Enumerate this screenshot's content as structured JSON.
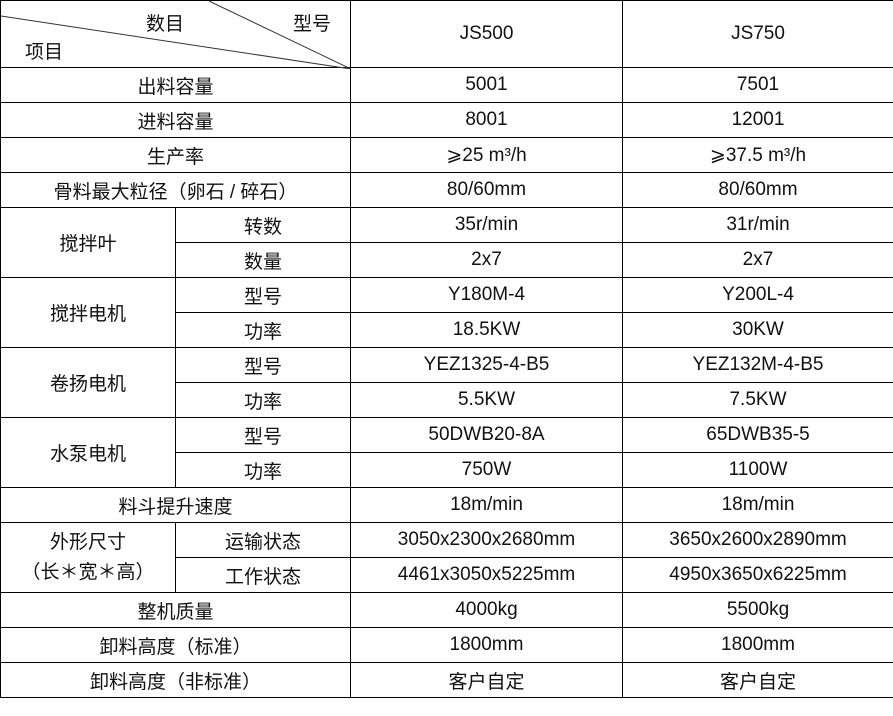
{
  "header": {
    "item": "项目",
    "count": "数目",
    "model": "型号",
    "models": [
      "JS500",
      "JS750"
    ]
  },
  "rows": [
    {
      "label": "出料容量",
      "values": [
        "5001",
        "7501"
      ]
    },
    {
      "label": "进料容量",
      "values": [
        "8001",
        "12001"
      ]
    },
    {
      "label": "生产率",
      "values": [
        "⩾25 m³/h",
        "⩾37.5 m³/h"
      ]
    },
    {
      "label": "骨料最大粒径（卵石 / 碎石）",
      "values": [
        "80/60mm",
        "80/60mm"
      ]
    },
    {
      "label": "搅拌叶",
      "sub": [
        {
          "label": "转数",
          "values": [
            "35r/min",
            "31r/min"
          ]
        },
        {
          "label": "数量",
          "values": [
            "2x7",
            "2x7"
          ]
        }
      ]
    },
    {
      "label": "搅拌电机",
      "sub": [
        {
          "label": "型号",
          "values": [
            "Y180M-4",
            "Y200L-4"
          ]
        },
        {
          "label": "功率",
          "values": [
            "18.5KW",
            "30KW"
          ]
        }
      ]
    },
    {
      "label": "卷扬电机",
      "sub": [
        {
          "label": "型号",
          "values": [
            "YEZ1325-4-B5",
            "YEZ132M-4-B5"
          ]
        },
        {
          "label": "功率",
          "values": [
            "5.5KW",
            "7.5KW"
          ]
        }
      ]
    },
    {
      "label": "水泵电机",
      "sub": [
        {
          "label": "型号",
          "values": [
            "50DWB20-8A",
            "65DWB35-5"
          ]
        },
        {
          "label": "功率",
          "values": [
            "750W",
            "1100W"
          ]
        }
      ]
    },
    {
      "label": "料斗提升速度",
      "values": [
        "18m/min",
        "18m/min"
      ]
    },
    {
      "label": "外形尺寸",
      "note": "（长＊宽＊高）",
      "sub": [
        {
          "label": "运输状态",
          "values": [
            "3050x2300x2680mm",
            "3650x2600x2890mm"
          ]
        },
        {
          "label": "工作状态",
          "values": [
            "4461x3050x5225mm",
            "4950x3650x6225mm"
          ]
        }
      ]
    },
    {
      "label": "整机质量",
      "values": [
        "4000kg",
        "5500kg"
      ]
    },
    {
      "label": "卸料高度（标准）",
      "values": [
        "1800mm",
        "1800mm"
      ]
    },
    {
      "label": "卸料高度（非标准）",
      "values": [
        "客户自定",
        "客户自定"
      ]
    }
  ]
}
